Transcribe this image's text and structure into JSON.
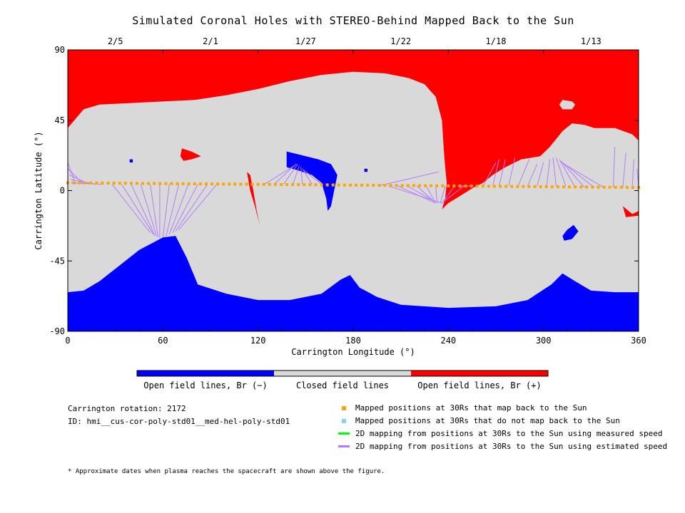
{
  "title": "Simulated Coronal Holes with STEREO-Behind Mapped Back to the Sun",
  "chart_data": {
    "type": "heatmap",
    "title": "Simulated Coronal Holes with STEREO-Behind Mapped Back to the Sun",
    "xlabel": "Carrington Longitude (°)",
    "ylabel": "Carrington Latitude (°)",
    "xlim": [
      0,
      360
    ],
    "ylim": [
      -90,
      90
    ],
    "xticks": [
      0,
      60,
      120,
      180,
      240,
      300,
      360
    ],
    "yticks": [
      -90,
      -45,
      0,
      45,
      90
    ],
    "top_axis_dates": [
      {
        "label": "2/5",
        "lon": 30
      },
      {
        "label": "2/1",
        "lon": 90
      },
      {
        "label": "1/27",
        "lon": 150
      },
      {
        "label": "1/22",
        "lon": 210
      },
      {
        "label": "1/18",
        "lon": 270
      },
      {
        "label": "1/13",
        "lon": 330
      }
    ],
    "colorbar": [
      {
        "label": "Open field lines, Br (−)",
        "color": "#0000ff"
      },
      {
        "label": "Closed field lines",
        "color": "#d9d9d9"
      },
      {
        "label": "Open field lines, Br (+)",
        "color": "#ff0000"
      }
    ],
    "north_positive_boundary": [
      [
        0,
        40
      ],
      [
        10,
        52
      ],
      [
        20,
        55
      ],
      [
        40,
        56
      ],
      [
        60,
        57
      ],
      [
        80,
        58
      ],
      [
        100,
        61
      ],
      [
        120,
        65
      ],
      [
        140,
        70
      ],
      [
        160,
        74
      ],
      [
        180,
        76
      ],
      [
        200,
        75
      ],
      [
        215,
        72
      ],
      [
        225,
        68
      ],
      [
        232,
        60
      ],
      [
        236,
        45
      ],
      [
        237,
        28
      ],
      [
        238,
        15
      ],
      [
        239,
        5
      ],
      [
        238,
        -5
      ],
      [
        236,
        -12
      ],
      [
        240,
        -8
      ],
      [
        248,
        -3
      ],
      [
        256,
        2
      ],
      [
        262,
        5
      ],
      [
        268,
        10
      ],
      [
        276,
        15
      ],
      [
        286,
        20
      ],
      [
        298,
        22
      ],
      [
        304,
        28
      ],
      [
        312,
        38
      ],
      [
        318,
        43
      ],
      [
        326,
        42
      ],
      [
        332,
        40
      ],
      [
        345,
        40
      ],
      [
        356,
        36
      ],
      [
        360,
        32
      ]
    ],
    "south_negative_boundary": [
      [
        0,
        -65
      ],
      [
        10,
        -64
      ],
      [
        20,
        -58
      ],
      [
        30,
        -50
      ],
      [
        45,
        -38
      ],
      [
        60,
        -30
      ],
      [
        68,
        -29
      ],
      [
        75,
        -43
      ],
      [
        82,
        -60
      ],
      [
        100,
        -66
      ],
      [
        120,
        -70
      ],
      [
        140,
        -70
      ],
      [
        160,
        -66
      ],
      [
        172,
        -57
      ],
      [
        178,
        -54
      ],
      [
        184,
        -62
      ],
      [
        195,
        -68
      ],
      [
        210,
        -73
      ],
      [
        240,
        -75
      ],
      [
        270,
        -74
      ],
      [
        290,
        -70
      ],
      [
        305,
        -60
      ],
      [
        312,
        -53
      ],
      [
        320,
        -58
      ],
      [
        330,
        -64
      ],
      [
        345,
        -65
      ],
      [
        360,
        -65
      ]
    ],
    "small_holes": [
      {
        "polarity": "negative",
        "points": [
          [
            138,
            25
          ],
          [
            146,
            23
          ],
          [
            158,
            20
          ],
          [
            166,
            17
          ],
          [
            170,
            10
          ],
          [
            168,
            0
          ],
          [
            166,
            -10
          ],
          [
            164,
            -13
          ],
          [
            163,
            -5
          ],
          [
            160,
            5
          ],
          [
            154,
            10
          ],
          [
            145,
            13
          ],
          [
            138,
            15
          ]
        ]
      },
      {
        "polarity": "positive",
        "points": [
          [
            72,
            27
          ],
          [
            78,
            25
          ],
          [
            84,
            22
          ],
          [
            78,
            20
          ],
          [
            73,
            19
          ],
          [
            71,
            22
          ]
        ]
      },
      {
        "polarity": "positive",
        "points": [
          [
            113,
            12
          ],
          [
            115,
            0
          ],
          [
            118,
            -10
          ],
          [
            120,
            -18
          ],
          [
            121,
            -22
          ],
          [
            119,
            -12
          ],
          [
            117,
            0
          ],
          [
            115,
            10
          ]
        ]
      },
      {
        "polarity": "positive",
        "points": [
          [
            350,
            -10
          ],
          [
            356,
            -15
          ],
          [
            360,
            -13
          ],
          [
            360,
            -16
          ],
          [
            352,
            -17
          ]
        ]
      },
      {
        "polarity": "negative",
        "points": [
          [
            315,
            -25
          ],
          [
            319,
            -22
          ],
          [
            322,
            -26
          ],
          [
            318,
            -31
          ],
          [
            313,
            -32
          ],
          [
            312,
            -29
          ]
        ]
      },
      {
        "polarity": "negative",
        "points": [
          [
            39,
            20
          ],
          [
            41,
            20
          ],
          [
            41,
            18
          ],
          [
            39,
            18
          ]
        ]
      },
      {
        "polarity": "negative",
        "points": [
          [
            187,
            14
          ],
          [
            189,
            14
          ],
          [
            189,
            12
          ],
          [
            187,
            12
          ]
        ]
      }
    ],
    "closed_islands": [
      {
        "points": [
          [
            312,
            58
          ],
          [
            318,
            57
          ],
          [
            320,
            55
          ],
          [
            318,
            52
          ],
          [
            312,
            52
          ],
          [
            310,
            55
          ]
        ]
      }
    ],
    "mapped_positions_lat_start": 5,
    "mapped_positions_lat_end": 2,
    "mapped_positions_count": 100,
    "estimated_speed_mappings": [
      {
        "lon": 0,
        "lat": 4,
        "foot_lon": 0,
        "foot_lat": 20
      },
      {
        "lon": 5,
        "lat": 4,
        "foot_lon": 0,
        "foot_lat": 18
      },
      {
        "lon": 10,
        "lat": 4,
        "foot_lon": 0,
        "foot_lat": 14
      },
      {
        "lon": 14,
        "lat": 4,
        "foot_lon": 1,
        "foot_lat": 10
      },
      {
        "lon": 18,
        "lat": 4,
        "foot_lon": 2,
        "foot_lat": 7
      },
      {
        "lon": 22,
        "lat": 4,
        "foot_lon": 2,
        "foot_lat": 5
      },
      {
        "lon": 28,
        "lat": 4,
        "foot_lon": 52,
        "foot_lat": -27
      },
      {
        "lon": 34,
        "lat": 4,
        "foot_lon": 54,
        "foot_lat": -28
      },
      {
        "lon": 40,
        "lat": 4,
        "foot_lon": 55,
        "foot_lat": -29
      },
      {
        "lon": 46,
        "lat": 4,
        "foot_lon": 56,
        "foot_lat": -29
      },
      {
        "lon": 52,
        "lat": 4,
        "foot_lon": 57,
        "foot_lat": -30
      },
      {
        "lon": 58,
        "lat": 4,
        "foot_lon": 58,
        "foot_lat": -30
      },
      {
        "lon": 64,
        "lat": 4,
        "foot_lon": 60,
        "foot_lat": -30
      },
      {
        "lon": 70,
        "lat": 4,
        "foot_lon": 62,
        "foot_lat": -29
      },
      {
        "lon": 76,
        "lat": 4,
        "foot_lon": 64,
        "foot_lat": -28
      },
      {
        "lon": 82,
        "lat": 4,
        "foot_lon": 66,
        "foot_lat": -27
      },
      {
        "lon": 88,
        "lat": 4,
        "foot_lon": 68,
        "foot_lat": -26
      },
      {
        "lon": 94,
        "lat": 4,
        "foot_lon": 70,
        "foot_lat": -25
      },
      {
        "lon": 124,
        "lat": 4,
        "foot_lon": 143,
        "foot_lat": 16
      },
      {
        "lon": 130,
        "lat": 4,
        "foot_lon": 144,
        "foot_lat": 17
      },
      {
        "lon": 136,
        "lat": 4,
        "foot_lon": 145,
        "foot_lat": 17
      },
      {
        "lon": 142,
        "lat": 4,
        "foot_lon": 146,
        "foot_lat": 16
      },
      {
        "lon": 148,
        "lat": 4,
        "foot_lon": 147,
        "foot_lat": 15
      },
      {
        "lon": 154,
        "lat": 4,
        "foot_lon": 148,
        "foot_lat": 14
      },
      {
        "lon": 160,
        "lat": 4,
        "foot_lon": 149,
        "foot_lat": 13
      },
      {
        "lon": 196,
        "lat": 3,
        "foot_lon": 234,
        "foot_lat": 12
      },
      {
        "lon": 202,
        "lat": 3,
        "foot_lon": 236,
        "foot_lat": -8
      },
      {
        "lon": 208,
        "lat": 3,
        "foot_lon": 232,
        "foot_lat": -8
      },
      {
        "lon": 214,
        "lat": 3,
        "foot_lon": 230,
        "foot_lat": -6
      },
      {
        "lon": 220,
        "lat": 3,
        "foot_lon": 231,
        "foot_lat": -7
      },
      {
        "lon": 226,
        "lat": 3,
        "foot_lon": 232,
        "foot_lat": -8
      },
      {
        "lon": 232,
        "lat": 3,
        "foot_lon": 233,
        "foot_lat": -8
      },
      {
        "lon": 238,
        "lat": 3,
        "foot_lon": 235,
        "foot_lat": -8
      },
      {
        "lon": 244,
        "lat": 3,
        "foot_lon": 236,
        "foot_lat": -8
      },
      {
        "lon": 250,
        "lat": 3,
        "foot_lon": 237,
        "foot_lat": -7
      },
      {
        "lon": 256,
        "lat": 3,
        "foot_lon": 248,
        "foot_lat": 3
      },
      {
        "lon": 262,
        "lat": 3,
        "foot_lon": 270,
        "foot_lat": 18
      },
      {
        "lon": 268,
        "lat": 3,
        "foot_lon": 272,
        "foot_lat": 20
      },
      {
        "lon": 272,
        "lat": 3,
        "foot_lon": 276,
        "foot_lat": 20
      },
      {
        "lon": 278,
        "lat": 3,
        "foot_lon": 282,
        "foot_lat": 21
      },
      {
        "lon": 284,
        "lat": 3,
        "foot_lon": 291,
        "foot_lat": 20
      },
      {
        "lon": 290,
        "lat": 3,
        "foot_lon": 296,
        "foot_lat": 17
      },
      {
        "lon": 296,
        "lat": 3,
        "foot_lon": 300,
        "foot_lat": 18
      },
      {
        "lon": 302,
        "lat": 3,
        "foot_lon": 304,
        "foot_lat": 20
      },
      {
        "lon": 308,
        "lat": 3,
        "foot_lon": 306,
        "foot_lat": 21
      },
      {
        "lon": 314,
        "lat": 3,
        "foot_lon": 308,
        "foot_lat": 21
      },
      {
        "lon": 320,
        "lat": 2,
        "foot_lon": 310,
        "foot_lat": 20
      },
      {
        "lon": 326,
        "lat": 2,
        "foot_lon": 311,
        "foot_lat": 19
      },
      {
        "lon": 332,
        "lat": 2,
        "foot_lon": 312,
        "foot_lat": 18
      },
      {
        "lon": 338,
        "lat": 2,
        "foot_lon": 313,
        "foot_lat": 17
      },
      {
        "lon": 344,
        "lat": 2,
        "foot_lon": 345,
        "foot_lat": 28
      },
      {
        "lon": 350,
        "lat": 2,
        "foot_lon": 352,
        "foot_lat": 24
      },
      {
        "lon": 356,
        "lat": 2,
        "foot_lon": 357,
        "foot_lat": 20
      },
      {
        "lon": 360,
        "lat": 2,
        "foot_lon": 359,
        "foot_lat": 14
      }
    ]
  },
  "info": {
    "rotation": "Carrington rotation: 2172",
    "id": "ID: hmi__cus-cor-poly-std01__med-hel-poly-std01"
  },
  "legend": [
    {
      "label": "Mapped positions at 30Rs that map back to the Sun",
      "color": "#ffa500",
      "kind": "square"
    },
    {
      "label": "Mapped positions at 30Rs that do not map back to the Sun",
      "color": "#87cefa",
      "kind": "square"
    },
    {
      "label": "2D mapping from positions at 30Rs to the Sun using measured speed",
      "color": "#00ff00",
      "kind": "line"
    },
    {
      "label": "2D mapping from positions at 30Rs to the Sun using estimated speed",
      "color": "#b57bff",
      "kind": "line"
    }
  ],
  "footnote": "* Approximate dates when plasma reaches the spacecraft are shown above the figure."
}
